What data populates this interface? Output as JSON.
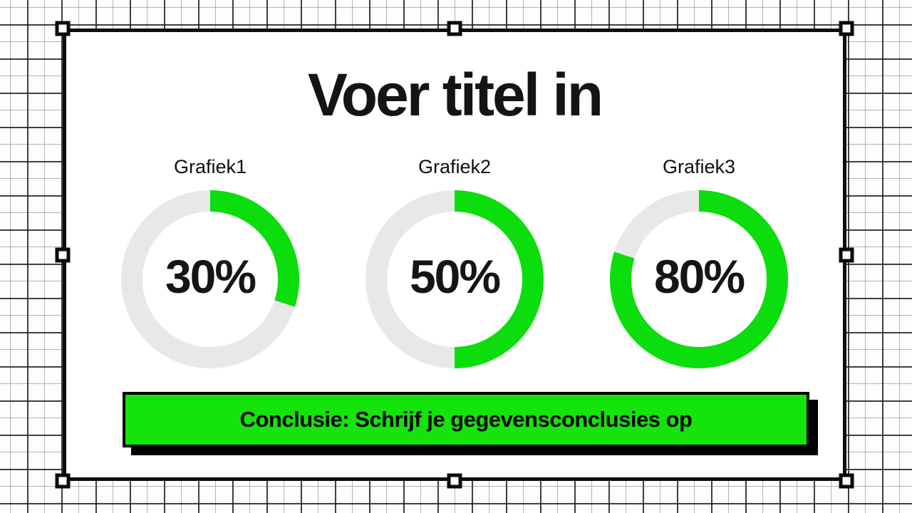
{
  "slide": {
    "title": "Voer titel in",
    "conclusion": "Conclusie: Schrijf je gegevensconclusies op"
  },
  "chart_data": [
    {
      "type": "donut",
      "title": "Grafiek1",
      "value": 30,
      "value_label": "30%",
      "start": "12-oclock",
      "direction": "clockwise"
    },
    {
      "type": "donut",
      "title": "Grafiek2",
      "value": 50,
      "value_label": "50%",
      "start": "12-oclock",
      "direction": "clockwise"
    },
    {
      "type": "donut",
      "title": "Grafiek3",
      "value": 80,
      "value_label": "80%",
      "start": "12-oclock",
      "direction": "clockwise"
    }
  ],
  "colors": {
    "chart_green": "#0cdd0c",
    "track_gray": "#e8e8e8",
    "bar_green": "#14e30c",
    "ink": "#141414"
  }
}
